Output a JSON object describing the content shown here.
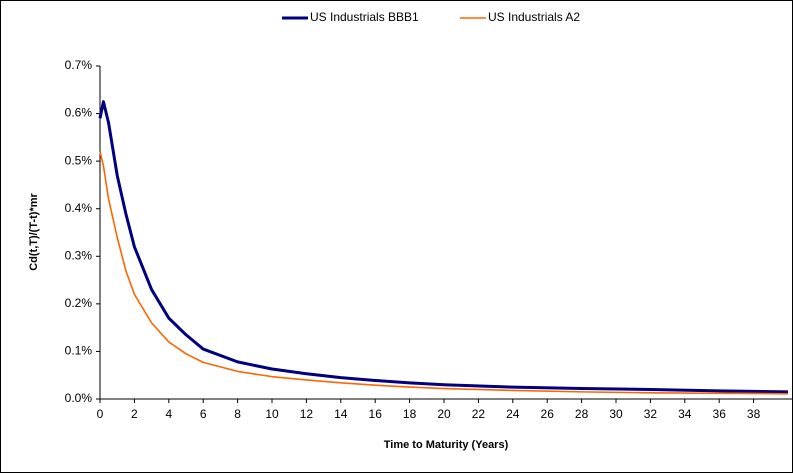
{
  "chart_data": {
    "type": "line",
    "x_label": "Time to Maturity (Years)",
    "y_label": "Cd(t,T)/(T-t)*mr",
    "x": [
      0,
      0.2,
      0.5,
      1,
      1.5,
      2,
      3,
      4,
      5,
      6,
      8,
      10,
      12,
      14,
      16,
      18,
      20,
      24,
      28,
      32,
      36,
      40
    ],
    "series": [
      {
        "name": "US Industrials BBB1",
        "color": "#000080",
        "values": [
          0.59,
          0.625,
          0.58,
          0.47,
          0.39,
          0.32,
          0.23,
          0.17,
          0.135,
          0.105,
          0.078,
          0.063,
          0.053,
          0.045,
          0.039,
          0.034,
          0.03,
          0.025,
          0.022,
          0.02,
          0.017,
          0.015
        ]
      },
      {
        "name": "US Industrials A2",
        "color": "#ff6600",
        "values": [
          0.52,
          0.49,
          0.42,
          0.34,
          0.27,
          0.22,
          0.16,
          0.12,
          0.095,
          0.077,
          0.058,
          0.047,
          0.04,
          0.034,
          0.029,
          0.025,
          0.022,
          0.018,
          0.015,
          0.013,
          0.012,
          0.011
        ]
      }
    ],
    "xlim": [
      0,
      40
    ],
    "xticks": [
      0,
      2,
      4,
      6,
      8,
      10,
      12,
      14,
      16,
      18,
      20,
      22,
      24,
      26,
      28,
      30,
      32,
      34,
      36,
      38
    ],
    "ylim": [
      0,
      0.7
    ],
    "yticks": [
      {
        "value": 0,
        "label": "0.0%"
      },
      {
        "value": 0.1,
        "label": "0.1%"
      },
      {
        "value": 0.2,
        "label": "0.2%"
      },
      {
        "value": 0.3,
        "label": "0.3%"
      },
      {
        "value": 0.4,
        "label": "0.4%"
      },
      {
        "value": 0.5,
        "label": "0.5%"
      },
      {
        "value": 0.6,
        "label": "0.6%"
      },
      {
        "value": 0.7,
        "label": "0.7%"
      }
    ],
    "legend": "top"
  }
}
